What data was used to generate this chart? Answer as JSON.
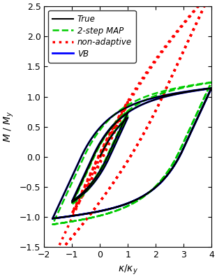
{
  "title": "",
  "xlabel": "κ/κ_y",
  "ylabel": "M / M_y",
  "xlim": [
    -2,
    4
  ],
  "ylim": [
    -1.5,
    2.5
  ],
  "xticks": [
    -2,
    -1,
    0,
    1,
    2,
    3,
    4
  ],
  "yticks": [
    -1.5,
    -1.0,
    -0.5,
    0.0,
    0.5,
    1.0,
    1.5,
    2.0,
    2.5
  ],
  "legend": [
    "True",
    "2-step MAP",
    "non-adaptive",
    "VB"
  ],
  "colors": [
    "black",
    "#00CC00",
    "red",
    "blue"
  ],
  "styles": [
    "-",
    "--",
    ":",
    "-"
  ],
  "linewidths": [
    1.5,
    1.8,
    2.5,
    2.0
  ],
  "figsize": [
    3.11,
    4.0
  ],
  "dpi": 100,
  "bg_color": "white"
}
